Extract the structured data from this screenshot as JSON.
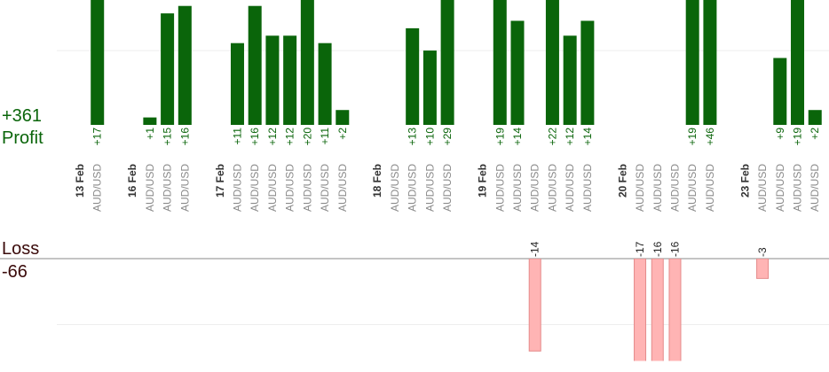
{
  "chart_data": {
    "type": "bar",
    "profit": {
      "title": "Profit",
      "total": "+361",
      "color": "#0a650a",
      "ylim": [
        0,
        16.8
      ],
      "gridlines": [
        10
      ]
    },
    "loss": {
      "title": "Loss",
      "total": "-66",
      "color": "#ffb4b4",
      "ylim": [
        0,
        -15.5
      ],
      "gridlines": [
        -10
      ]
    },
    "groups": [
      {
        "date": "13 Feb",
        "trades": [
          {
            "pair": "AUD/USD",
            "profit": 17,
            "profit_label": "+17"
          }
        ]
      },
      {
        "date": "16 Feb",
        "trades": [
          {
            "pair": "AUD/USD",
            "profit": 1,
            "profit_label": "+1"
          },
          {
            "pair": "AUD/USD",
            "profit": 15,
            "profit_label": "+15"
          },
          {
            "pair": "AUD/USD",
            "profit": 16,
            "profit_label": "+16"
          }
        ]
      },
      {
        "date": "17 Feb",
        "trades": [
          {
            "pair": "AUD/USD",
            "profit": 11,
            "profit_label": "+11"
          },
          {
            "pair": "AUD/USD",
            "profit": 16,
            "profit_label": "+16"
          },
          {
            "pair": "AUD/USD",
            "profit": 12,
            "profit_label": "+12"
          },
          {
            "pair": "AUD/USD",
            "profit": 12,
            "profit_label": "+12"
          },
          {
            "pair": "AUD/USD",
            "profit": 20,
            "profit_label": "+20"
          },
          {
            "pair": "AUD/USD",
            "profit": 11,
            "profit_label": "+11"
          },
          {
            "pair": "AUD/USD",
            "profit": 2,
            "profit_label": "+2"
          }
        ]
      },
      {
        "date": "18 Feb",
        "trades": [
          {
            "pair": "AUD/USD"
          },
          {
            "pair": "AUD/USD",
            "profit": 13,
            "profit_label": "+13"
          },
          {
            "pair": "AUD/USD",
            "profit": 10,
            "profit_label": "+10"
          },
          {
            "pair": "AUD/USD",
            "profit": 29,
            "profit_label": "+29"
          }
        ]
      },
      {
        "date": "19 Feb",
        "trades": [
          {
            "pair": "AUD/USD",
            "profit": 19,
            "profit_label": "+19"
          },
          {
            "pair": "AUD/USD",
            "profit": 14,
            "profit_label": "+14"
          },
          {
            "pair": "AUD/USD",
            "loss": -14
          },
          {
            "pair": "AUD/USD",
            "profit": 22,
            "profit_label": "+22"
          },
          {
            "pair": "AUD/USD",
            "profit": 12,
            "profit_label": "+12"
          },
          {
            "pair": "AUD/USD",
            "profit": 14,
            "profit_label": "+14"
          }
        ]
      },
      {
        "date": "20 Feb",
        "trades": [
          {
            "pair": "AUD/USD",
            "loss": -17
          },
          {
            "pair": "AUD/USD",
            "loss": -16
          },
          {
            "pair": "AUD/USD",
            "loss": -16
          },
          {
            "pair": "AUD/USD",
            "profit": 19,
            "profit_label": "+19"
          },
          {
            "pair": "AUD/USD",
            "profit": 46,
            "profit_label": "+46"
          }
        ]
      },
      {
        "date": "23 Feb",
        "trades": [
          {
            "pair": "AUD/USD",
            "loss": -3
          },
          {
            "pair": "AUD/USD",
            "profit": 9,
            "profit_label": "+9"
          },
          {
            "pair": "AUD/USD",
            "profit": 19,
            "profit_label": "+19"
          },
          {
            "pair": "AUD/USD",
            "profit": 2,
            "profit_label": "+2"
          }
        ]
      }
    ]
  }
}
